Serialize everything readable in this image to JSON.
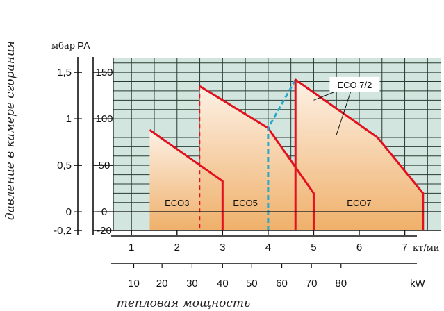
{
  "chart_data": {
    "type": "area",
    "title": "",
    "ylabel": "давление в камере сгорания",
    "xlabel": "тепловая мощность",
    "y_units": {
      "left": "мбар",
      "right": "PA"
    },
    "x_units": {
      "top": "кт/ми",
      "bottom": "kW"
    },
    "ylim_pa": [
      -20,
      165
    ],
    "xlim_top": [
      0.6,
      7.8
    ],
    "y_ticks_mbar": [
      "1,5",
      "1",
      "0,5",
      "0",
      "-0,2"
    ],
    "y_ticks_mbar_values": [
      150,
      100,
      50,
      0,
      -20
    ],
    "y_ticks_pa": [
      "150",
      "100",
      "50",
      "0",
      "-20"
    ],
    "y_ticks_pa_values": [
      150,
      100,
      50,
      0,
      -20
    ],
    "x_ticks_top": [
      "1",
      "2",
      "3",
      "4",
      "5",
      "6",
      "7"
    ],
    "x_ticks_top_values": [
      1,
      2,
      3,
      4,
      5,
      6,
      7
    ],
    "x_ticks_bottom": [
      "10",
      "20",
      "30",
      "40",
      "50",
      "60",
      "70",
      "80"
    ],
    "x_ticks_bottom_values": [
      1.05,
      1.67,
      2.33,
      3.0,
      3.64,
      4.3,
      4.95,
      5.6
    ],
    "grid": true,
    "colors": {
      "curve": "#e3101e",
      "dashed": "#2aa7c9",
      "grid": "#2a3a30",
      "plot_bg": "#d2e6df",
      "fill_top": "#fdf1e6",
      "fill_bottom": "#efb06a"
    },
    "series": [
      {
        "name": "ECO3",
        "x": [
          1.4,
          3.0,
          3.0
        ],
        "y": [
          88,
          33,
          -20
        ]
      },
      {
        "name": "ECO5",
        "x": [
          2.5,
          4.0,
          5.0,
          5.0
        ],
        "y": [
          135,
          90,
          20,
          -20
        ]
      },
      {
        "name": "ECO 7/2",
        "style": "dashed",
        "x": [
          4.0,
          4.0,
          4.6
        ],
        "y": [
          -20,
          90,
          142
        ]
      },
      {
        "name": "ECO7",
        "x": [
          4.6,
          4.6,
          6.4,
          7.4,
          7.4
        ],
        "y": [
          -20,
          142,
          80,
          20,
          -20
        ]
      }
    ],
    "fills": [
      {
        "x": [
          1.4,
          3.0,
          3.0,
          1.4
        ],
        "y": [
          88,
          33,
          -20,
          -20
        ]
      },
      {
        "x": [
          2.5,
          4.0,
          5.0,
          5.0,
          2.5
        ],
        "y": [
          135,
          90,
          20,
          -20,
          -20
        ]
      },
      {
        "x": [
          4.6,
          6.4,
          7.4,
          7.4,
          4.6
        ],
        "y": [
          142,
          80,
          20,
          -20,
          -20
        ]
      }
    ],
    "boundaries_dashed_red": [
      2.5,
      4.6
    ],
    "region_labels": [
      {
        "text": "ECO3",
        "x": 2.0,
        "y": 10
      },
      {
        "text": "ECO5",
        "x": 3.5,
        "y": 10
      },
      {
        "text": "ECO7",
        "x": 6.0,
        "y": 10
      }
    ],
    "callout": {
      "text": "ECO 7/2",
      "x": 5.9,
      "y": 136,
      "targets": [
        [
          5.0,
          120
        ],
        [
          5.5,
          83
        ]
      ]
    }
  }
}
